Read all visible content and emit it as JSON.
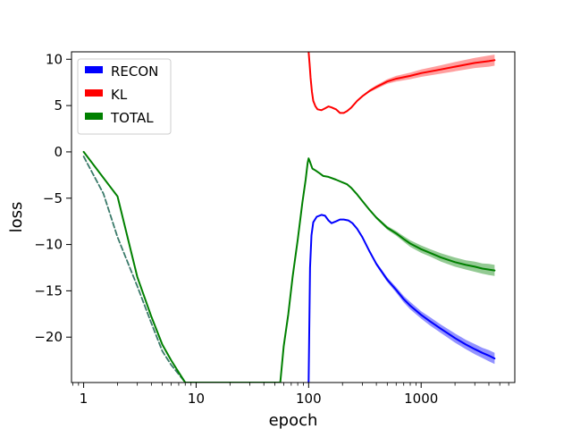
{
  "chart_data": {
    "type": "line",
    "xscale": "log",
    "xlabel": "epoch",
    "ylabel": "loss",
    "xlim": [
      0.78,
      6800
    ],
    "ylim": [
      -24.9,
      10.8
    ],
    "x_ticks": [
      1,
      10,
      100,
      1000
    ],
    "x_tick_labels": [
      "1",
      "10",
      "100",
      "1000"
    ],
    "y_ticks": [
      10,
      5,
      0,
      -5,
      -10,
      -15,
      -20
    ],
    "y_tick_labels": [
      "10",
      "5",
      "0",
      "−5",
      "−10",
      "−15",
      "−20"
    ],
    "grid": false,
    "legend_position": "top-left",
    "series": [
      {
        "name": "RECON",
        "color": "#0000ff",
        "band_color": "#6e6eff",
        "x": [
          100,
          103,
          106,
          110,
          118,
          130,
          140,
          150,
          160,
          175,
          190,
          205,
          225,
          245,
          270,
          300,
          350,
          400,
          500,
          600,
          700,
          800,
          1000,
          1200,
          1500,
          2000,
          2500,
          3000,
          3500,
          4000,
          4500
        ],
        "y": [
          -24.9,
          -12.5,
          -9.0,
          -7.6,
          -7.0,
          -6.8,
          -6.9,
          -7.4,
          -7.7,
          -7.5,
          -7.3,
          -7.3,
          -7.4,
          -7.7,
          -8.3,
          -9.2,
          -10.8,
          -12.1,
          -13.8,
          -14.9,
          -15.9,
          -16.6,
          -17.6,
          -18.3,
          -19.1,
          -20.1,
          -20.8,
          -21.3,
          -21.7,
          -22.0,
          -22.3
        ],
        "band_width": [
          0,
          0,
          0,
          0,
          0,
          0,
          0,
          0,
          0,
          0,
          0,
          0,
          0,
          0,
          0,
          0,
          0.1,
          0.2,
          0.25,
          0.3,
          0.35,
          0.4,
          0.4,
          0.45,
          0.45,
          0.5,
          0.5,
          0.55,
          0.55,
          0.6,
          0.6
        ]
      },
      {
        "name": "KL",
        "color": "#ff0000",
        "band_color": "#ff7f7f",
        "x": [
          100,
          102,
          104,
          107,
          110,
          115,
          120,
          130,
          140,
          150,
          160,
          175,
          190,
          205,
          220,
          240,
          270,
          300,
          350,
          400,
          500,
          600,
          800,
          1000,
          1500,
          2000,
          3000,
          4000,
          4500
        ],
        "y": [
          10.8,
          9.5,
          8.0,
          6.5,
          5.5,
          4.9,
          4.6,
          4.5,
          4.7,
          4.9,
          4.8,
          4.6,
          4.2,
          4.2,
          4.4,
          4.8,
          5.5,
          6.0,
          6.6,
          7.0,
          7.6,
          7.9,
          8.2,
          8.5,
          8.9,
          9.2,
          9.6,
          9.8,
          9.9
        ],
        "band_width": [
          0,
          0,
          0,
          0,
          0,
          0,
          0,
          0,
          0,
          0,
          0,
          0,
          0,
          0,
          0,
          0,
          0.05,
          0.1,
          0.15,
          0.2,
          0.25,
          0.3,
          0.35,
          0.4,
          0.45,
          0.5,
          0.55,
          0.6,
          0.6
        ]
      },
      {
        "name": "TOTAL",
        "color": "#008000",
        "band_color": "#6fb86f",
        "x": [
          1,
          2,
          3,
          4,
          5,
          6,
          7,
          8,
          56,
          60,
          66,
          72,
          80,
          88,
          94,
          98,
          100,
          103,
          108,
          115,
          125,
          135,
          150,
          175,
          200,
          220,
          240,
          270,
          300,
          350,
          400,
          500,
          600,
          700,
          800,
          1000,
          1200,
          1500,
          2000,
          2500,
          3000,
          3500,
          4000,
          4500
        ],
        "y": [
          0.0,
          -4.8,
          -13.5,
          -17.8,
          -20.8,
          -22.5,
          -23.8,
          -24.9,
          -24.9,
          -21.0,
          -17.5,
          -13.5,
          -9.5,
          -5.5,
          -3.0,
          -1.2,
          -0.7,
          -1.1,
          -1.8,
          -2.0,
          -2.3,
          -2.6,
          -2.7,
          -3.0,
          -3.3,
          -3.5,
          -3.9,
          -4.6,
          -5.3,
          -6.3,
          -7.1,
          -8.2,
          -8.8,
          -9.4,
          -9.9,
          -10.5,
          -10.9,
          -11.4,
          -11.9,
          -12.2,
          -12.4,
          -12.6,
          -12.7,
          -12.8
        ],
        "band_width": [
          0,
          0,
          0,
          0,
          0,
          0,
          0,
          0,
          0,
          0,
          0,
          0,
          0,
          0,
          0,
          0,
          0,
          0,
          0,
          0,
          0,
          0,
          0,
          0,
          0,
          0,
          0,
          0,
          0.05,
          0.1,
          0.15,
          0.2,
          0.25,
          0.3,
          0.35,
          0.4,
          0.4,
          0.45,
          0.5,
          0.5,
          0.55,
          0.55,
          0.6,
          0.6
        ]
      },
      {
        "name": "",
        "color": "#3a7a6a",
        "dashed": true,
        "x": [
          1,
          1.5,
          2,
          3,
          4,
          5,
          6,
          7,
          8
        ],
        "y": [
          -0.5,
          -4.5,
          -9.2,
          -14.5,
          -18.5,
          -21.5,
          -23.0,
          -24.0,
          -24.9
        ]
      }
    ]
  }
}
